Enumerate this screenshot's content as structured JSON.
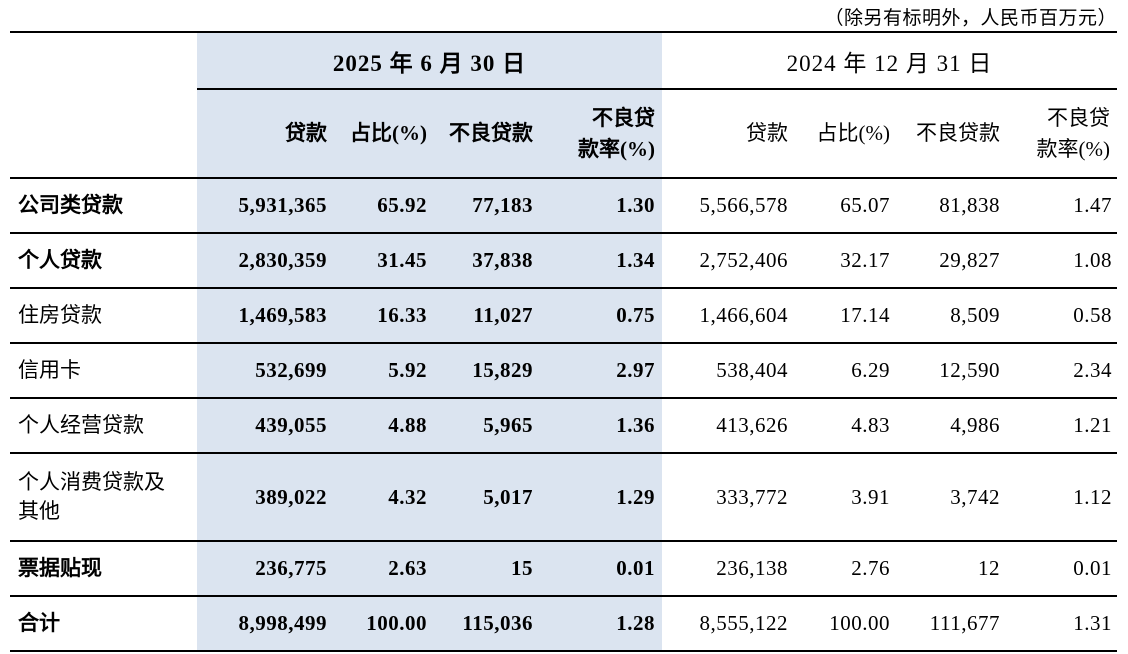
{
  "note": "（除另有标明外，人民币百万元）",
  "colors": {
    "highlight": "#dbe4f0",
    "border": "#000000",
    "text": "#000000"
  },
  "table": {
    "periods": [
      {
        "label": "2025 年 6 月 30 日",
        "columns": [
          "贷款",
          "占比(%)",
          "不良贷款",
          "不良贷\n款率(%)"
        ]
      },
      {
        "label": "2024 年 12 月 31 日",
        "columns": [
          "贷款",
          "占比(%)",
          "不良贷款",
          "不良贷\n款率(%)"
        ]
      }
    ],
    "rows": [
      {
        "label": "公司类贷款",
        "bold": true,
        "cur": [
          "5,931,365",
          "65.92",
          "77,183",
          "1.30"
        ],
        "prev": [
          "5,566,578",
          "65.07",
          "81,838",
          "1.47"
        ]
      },
      {
        "label": "个人贷款",
        "bold": true,
        "cur": [
          "2,830,359",
          "31.45",
          "37,838",
          "1.34"
        ],
        "prev": [
          "2,752,406",
          "32.17",
          "29,827",
          "1.08"
        ]
      },
      {
        "label": "住房贷款",
        "bold": false,
        "cur": [
          "1,469,583",
          "16.33",
          "11,027",
          "0.75"
        ],
        "prev": [
          "1,466,604",
          "17.14",
          "8,509",
          "0.58"
        ]
      },
      {
        "label": "信用卡",
        "bold": false,
        "cur": [
          "532,699",
          "5.92",
          "15,829",
          "2.97"
        ],
        "prev": [
          "538,404",
          "6.29",
          "12,590",
          "2.34"
        ]
      },
      {
        "label": "个人经营贷款",
        "bold": false,
        "cur": [
          "439,055",
          "4.88",
          "5,965",
          "1.36"
        ],
        "prev": [
          "413,626",
          "4.83",
          "4,986",
          "1.21"
        ]
      },
      {
        "label": "个人消费贷款及\n其他",
        "bold": false,
        "cur": [
          "389,022",
          "4.32",
          "5,017",
          "1.29"
        ],
        "prev": [
          "333,772",
          "3.91",
          "3,742",
          "1.12"
        ]
      },
      {
        "label": "票据贴现",
        "bold": true,
        "cur": [
          "236,775",
          "2.63",
          "15",
          "0.01"
        ],
        "prev": [
          "236,138",
          "2.76",
          "12",
          "0.01"
        ]
      },
      {
        "label": "合计",
        "bold": true,
        "cur": [
          "8,998,499",
          "100.00",
          "115,036",
          "1.28"
        ],
        "prev": [
          "8,555,122",
          "100.00",
          "111,677",
          "1.31"
        ]
      }
    ]
  }
}
